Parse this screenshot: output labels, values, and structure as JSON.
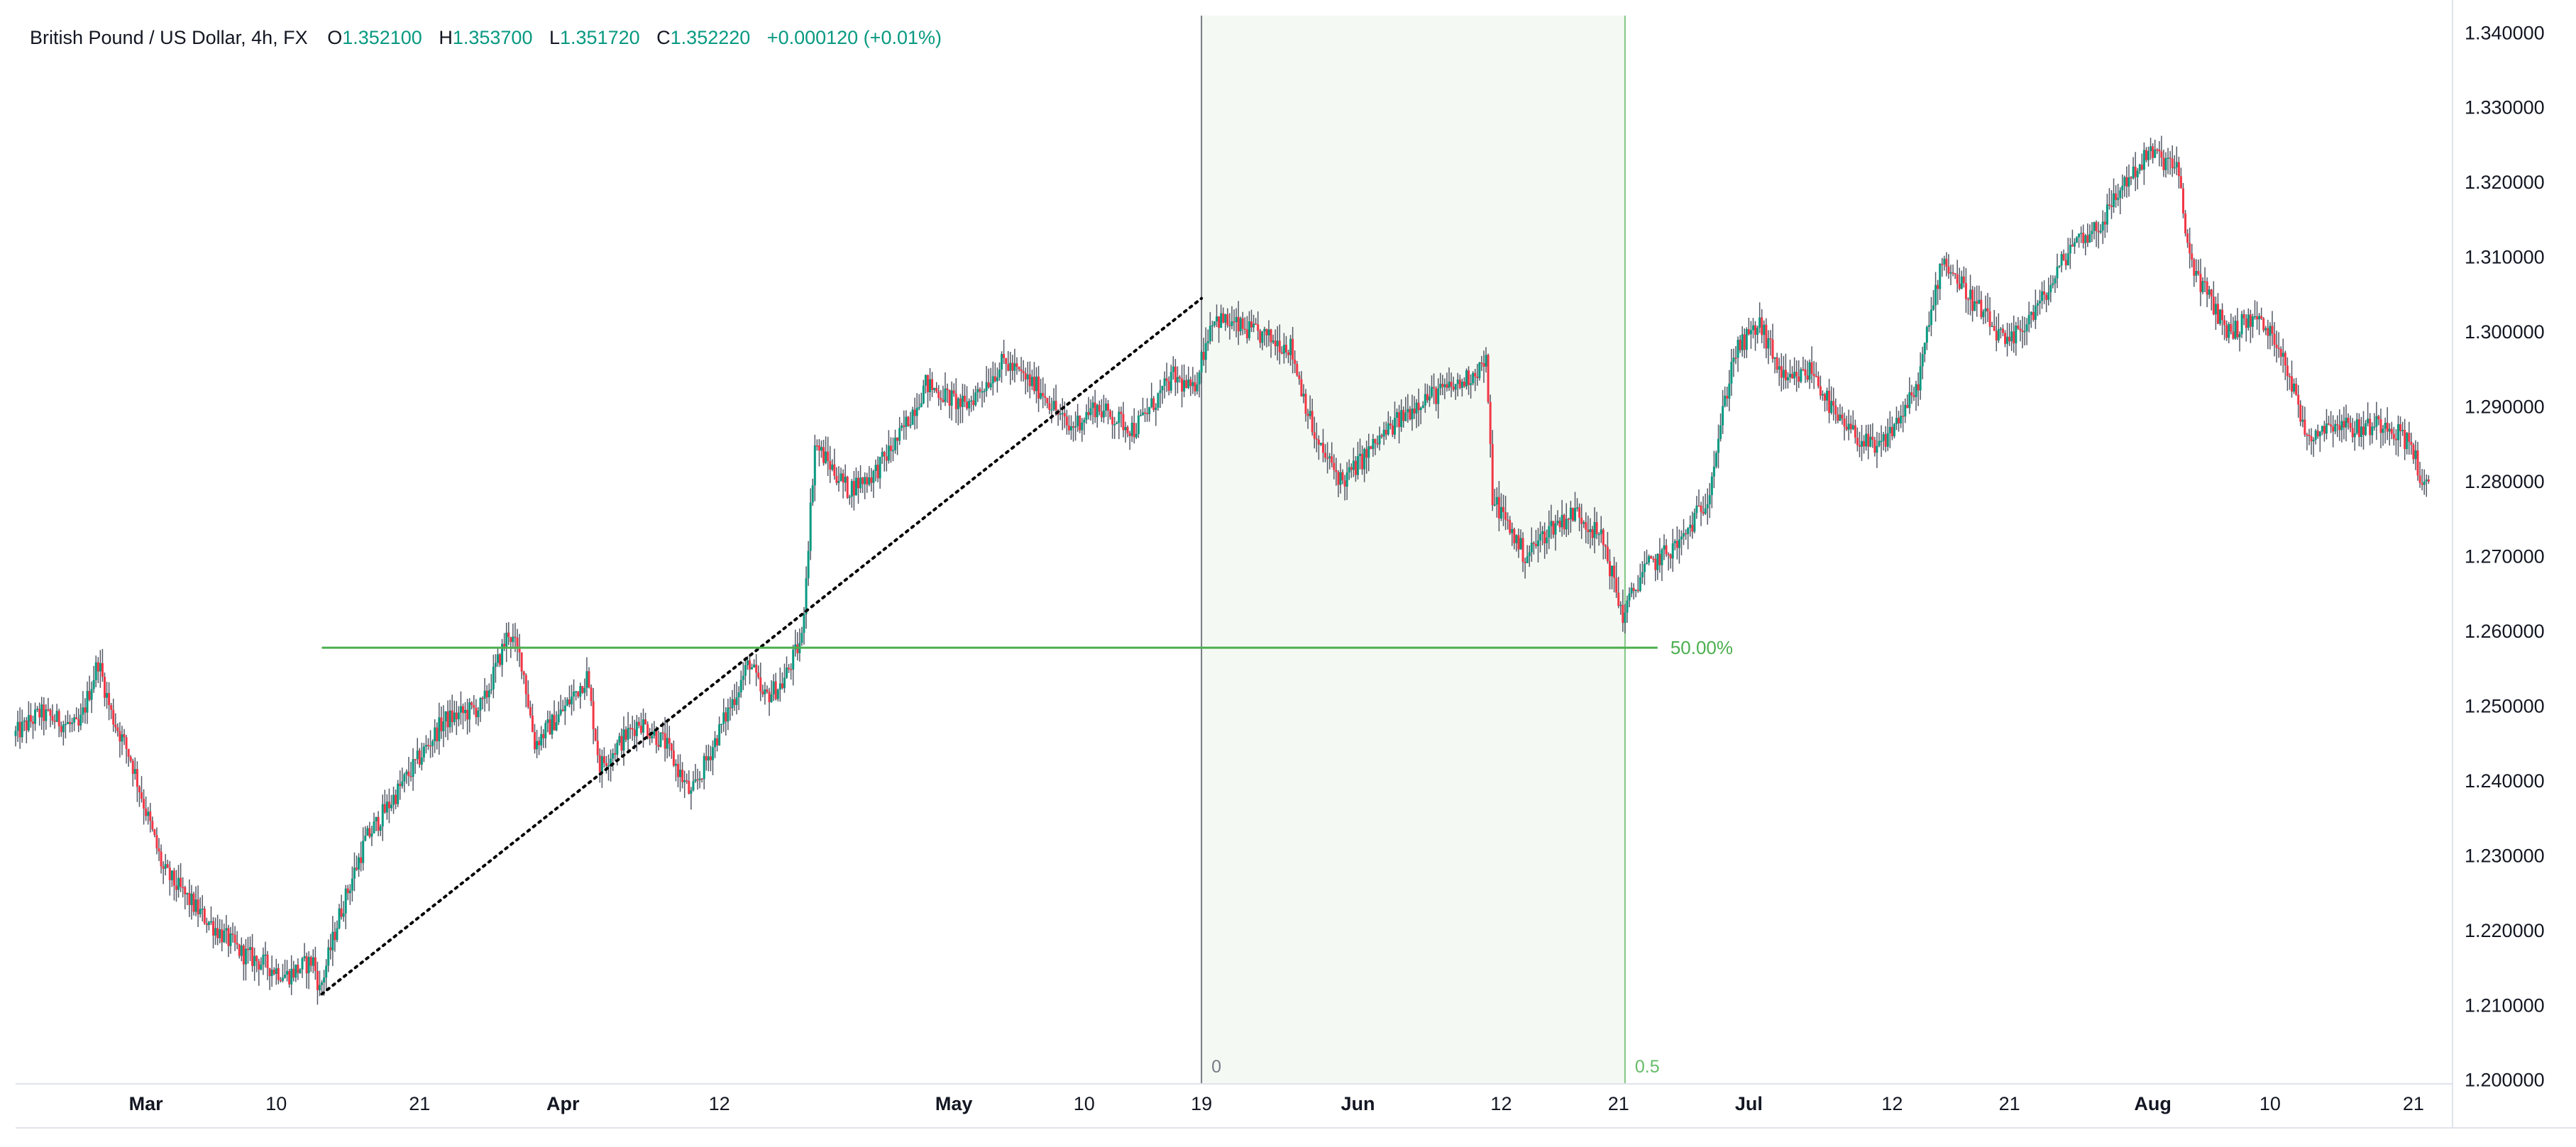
{
  "header": {
    "symbol": "British Pound / US Dollar, 4h, FX",
    "o_label": "O",
    "o_value": "1.352100",
    "h_label": "H",
    "h_value": "1.353700",
    "l_label": "L",
    "l_value": "1.351720",
    "c_label": "C",
    "c_value": "1.352220",
    "change": "+0.000120 (+0.01%)"
  },
  "colors": {
    "up": "#089981",
    "down": "#f23645",
    "wick": "#555a66",
    "fib_line": "#4caf50",
    "fib_zone": "#f5f9f3",
    "axis_text": "#131722",
    "header_text": "#131722",
    "header_values": "#089981",
    "border": "#e0e3eb"
  },
  "chart_data": {
    "type": "candlestick",
    "timeframe": "4h",
    "ylim": [
      1.2,
      1.34
    ],
    "y_ticks": [
      "1.340000",
      "1.330000",
      "1.320000",
      "1.310000",
      "1.300000",
      "1.290000",
      "1.280000",
      "1.270000",
      "1.260000",
      "1.250000",
      "1.240000",
      "1.230000",
      "1.220000",
      "1.210000",
      "1.200000"
    ],
    "x_ticks": [
      {
        "label": "Mar",
        "day": 28,
        "bold": true
      },
      {
        "label": "10",
        "day": 38,
        "bold": false
      },
      {
        "label": "21",
        "day": 49,
        "bold": false
      },
      {
        "label": "Apr",
        "day": 60,
        "bold": true
      },
      {
        "label": "12",
        "day": 72,
        "bold": false
      },
      {
        "label": "May",
        "day": 90,
        "bold": true
      },
      {
        "label": "10",
        "day": 100,
        "bold": false
      },
      {
        "label": "19",
        "day": 109,
        "bold": false
      },
      {
        "label": "Jun",
        "day": 121,
        "bold": true
      },
      {
        "label": "12",
        "day": 132,
        "bold": false
      },
      {
        "label": "21",
        "day": 141,
        "bold": false
      },
      {
        "label": "Jul",
        "day": 151,
        "bold": true
      },
      {
        "label": "12",
        "day": 162,
        "bold": false
      },
      {
        "label": "21",
        "day": 171,
        "bold": false
      },
      {
        "label": "Aug",
        "day": 182,
        "bold": true
      },
      {
        "label": "10",
        "day": 191,
        "bold": false
      },
      {
        "label": "21",
        "day": 202,
        "bold": false
      }
    ],
    "x_range_days": [
      18,
      205
    ],
    "price_path": [
      [
        18,
        1.246
      ],
      [
        20,
        1.249
      ],
      [
        23,
        1.247
      ],
      [
        24.5,
        1.256
      ],
      [
        25.5,
        1.249
      ],
      [
        27,
        1.243
      ],
      [
        29.5,
        1.228
      ],
      [
        32.5,
        1.222
      ],
      [
        35.5,
        1.217
      ],
      [
        39,
        1.214
      ],
      [
        41,
        1.216
      ],
      [
        41.5,
        1.212
      ],
      [
        43,
        1.222
      ],
      [
        45,
        1.232
      ],
      [
        48,
        1.24
      ],
      [
        51,
        1.248
      ],
      [
        54,
        1.25
      ],
      [
        56,
        1.26
      ],
      [
        57,
        1.256
      ],
      [
        58,
        1.245
      ],
      [
        60,
        1.249
      ],
      [
        62,
        1.254
      ],
      [
        63,
        1.242
      ],
      [
        66,
        1.248
      ],
      [
        68,
        1.245
      ],
      [
        70,
        1.238
      ],
      [
        72,
        1.246
      ],
      [
        74.5,
        1.256
      ],
      [
        75.5,
        1.251
      ],
      [
        77,
        1.253
      ],
      [
        78.5,
        1.259
      ],
      [
        79.5,
        1.285
      ],
      [
        82,
        1.279
      ],
      [
        84,
        1.281
      ],
      [
        86,
        1.286
      ],
      [
        88,
        1.293
      ],
      [
        91,
        1.29
      ],
      [
        94,
        1.296
      ],
      [
        97,
        1.292
      ],
      [
        99,
        1.287
      ],
      [
        101,
        1.29
      ],
      [
        104,
        1.287
      ],
      [
        107,
        1.294
      ],
      [
        108.5,
        1.292
      ],
      [
        110,
        1.302
      ],
      [
        113,
        1.3
      ],
      [
        116,
        1.298
      ],
      [
        118,
        1.285
      ],
      [
        120,
        1.28
      ],
      [
        123,
        1.286
      ],
      [
        126,
        1.291
      ],
      [
        129,
        1.293
      ],
      [
        131,
        1.296
      ],
      [
        131.5,
        1.278
      ],
      [
        134,
        1.27
      ],
      [
        136,
        1.274
      ],
      [
        138,
        1.276
      ],
      [
        140,
        1.272
      ],
      [
        141.5,
        1.262
      ],
      [
        143,
        1.268
      ],
      [
        146,
        1.272
      ],
      [
        148,
        1.278
      ],
      [
        150,
        1.297
      ],
      [
        152,
        1.301
      ],
      [
        154,
        1.293
      ],
      [
        156,
        1.295
      ],
      [
        158,
        1.288
      ],
      [
        161,
        1.284
      ],
      [
        164,
        1.292
      ],
      [
        166,
        1.31
      ],
      [
        168,
        1.305
      ],
      [
        171,
        1.298
      ],
      [
        174,
        1.305
      ],
      [
        176,
        1.312
      ],
      [
        178,
        1.314
      ],
      [
        180,
        1.32
      ],
      [
        182,
        1.324
      ],
      [
        184,
        1.322
      ],
      [
        185,
        1.31
      ],
      [
        186,
        1.306
      ],
      [
        188,
        1.3
      ],
      [
        190,
        1.302
      ],
      [
        192,
        1.298
      ],
      [
        194,
        1.286
      ],
      [
        196,
        1.288
      ],
      [
        198,
        1.287
      ],
      [
        200,
        1.288
      ],
      [
        202,
        1.285
      ],
      [
        203,
        1.279
      ]
    ],
    "trend_line": {
      "from": [
        41.5,
        1.2115
      ],
      "to": [
        109,
        1.3045
      ],
      "style": "dotted"
    },
    "fib_time_zone": {
      "start_day": 109,
      "end_day": 141.5,
      "label_start": "0",
      "label_end": "0.5"
    },
    "level_line": {
      "price": 1.2578,
      "from_day": 41.5,
      "to_day": 144,
      "label": "50.00%"
    }
  }
}
